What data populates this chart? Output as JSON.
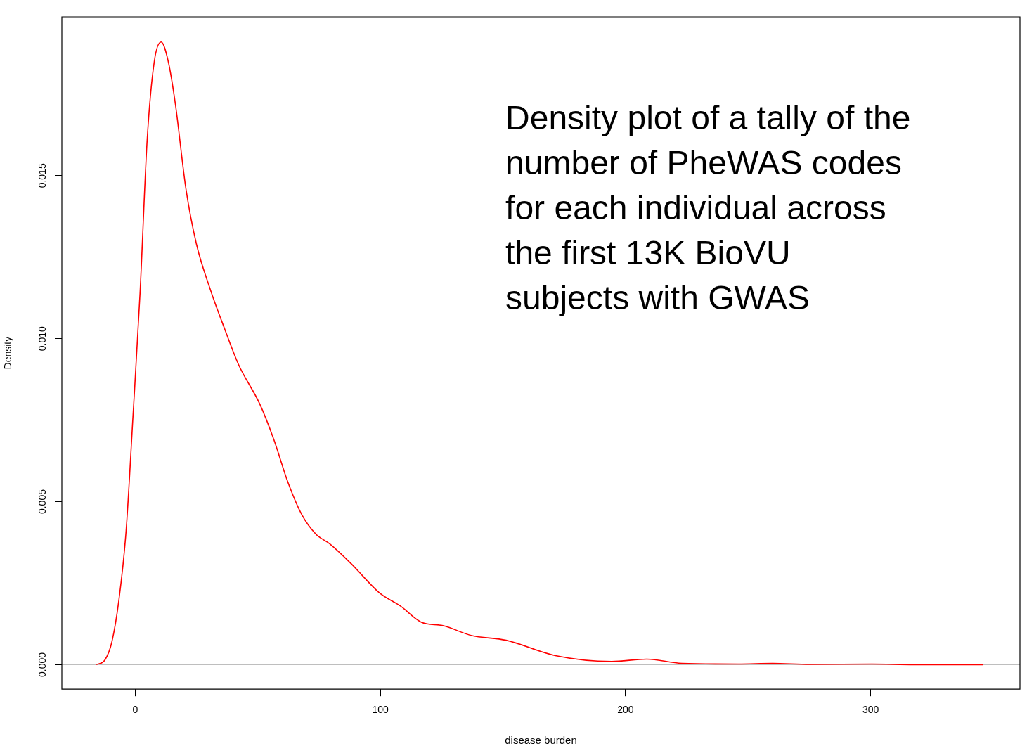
{
  "chart_data": {
    "type": "line",
    "xlabel": "disease burden",
    "ylabel": "Density",
    "x": [
      -15.8,
      -12.3,
      -9.5,
      -6.6,
      -3.7,
      -0.9,
      2,
      4.9,
      7.8,
      10.6,
      13.5,
      16.4,
      20.7,
      25,
      30.7,
      36.5,
      42.2,
      50.8,
      56.6,
      62.3,
      68,
      73.8,
      79.5,
      88.1,
      99.7,
      108.2,
      116.9,
      125.5,
      137,
      151.3,
      171.4,
      194.4,
      208.7,
      223,
      246,
      260,
      275,
      300.6,
      317.8,
      346
    ],
    "series": [
      {
        "color": "#ff0000",
        "values": [
          0,
          0.00015,
          0.0007,
          0.002,
          0.0041,
          0.0076,
          0.0114,
          0.0161,
          0.0185,
          0.0191,
          0.0185,
          0.0172,
          0.0146,
          0.0129,
          0.0115,
          0.0103,
          0.0092,
          0.008,
          0.0069,
          0.0056,
          0.0046,
          0.004,
          0.0037,
          0.0031,
          0.0022,
          0.0018,
          0.0013,
          0.0012,
          0.0009,
          0.00075,
          0.00028,
          0.0001,
          0.00017,
          4e-05,
          2e-05,
          4e-05,
          1e-05,
          2e-05,
          0,
          0
        ]
      }
    ],
    "xlim": [
      -29.9,
      360.9
    ],
    "xticks": [
      0,
      100,
      200,
      300
    ],
    "ylim": [
      -0.00075,
      0.01987
    ],
    "yticks": [
      {
        "value": 0,
        "label": "0.000"
      },
      {
        "value": 0.005,
        "label": "0.005"
      },
      {
        "value": 0.01,
        "label": "0.010"
      },
      {
        "value": 0.015,
        "label": "0.015"
      }
    ],
    "ref_lines": [
      {
        "axis": "y",
        "value": 0,
        "color": "#bebebe"
      }
    ],
    "annotations": [
      {
        "text": "Density plot of a tally of the\nnumber of PheWAS codes\nfor each individual across\nthe first 13K BioVU\nsubjects with GWAS"
      }
    ],
    "grid": false,
    "legend": false,
    "marker": "none",
    "line_style": "solid"
  }
}
